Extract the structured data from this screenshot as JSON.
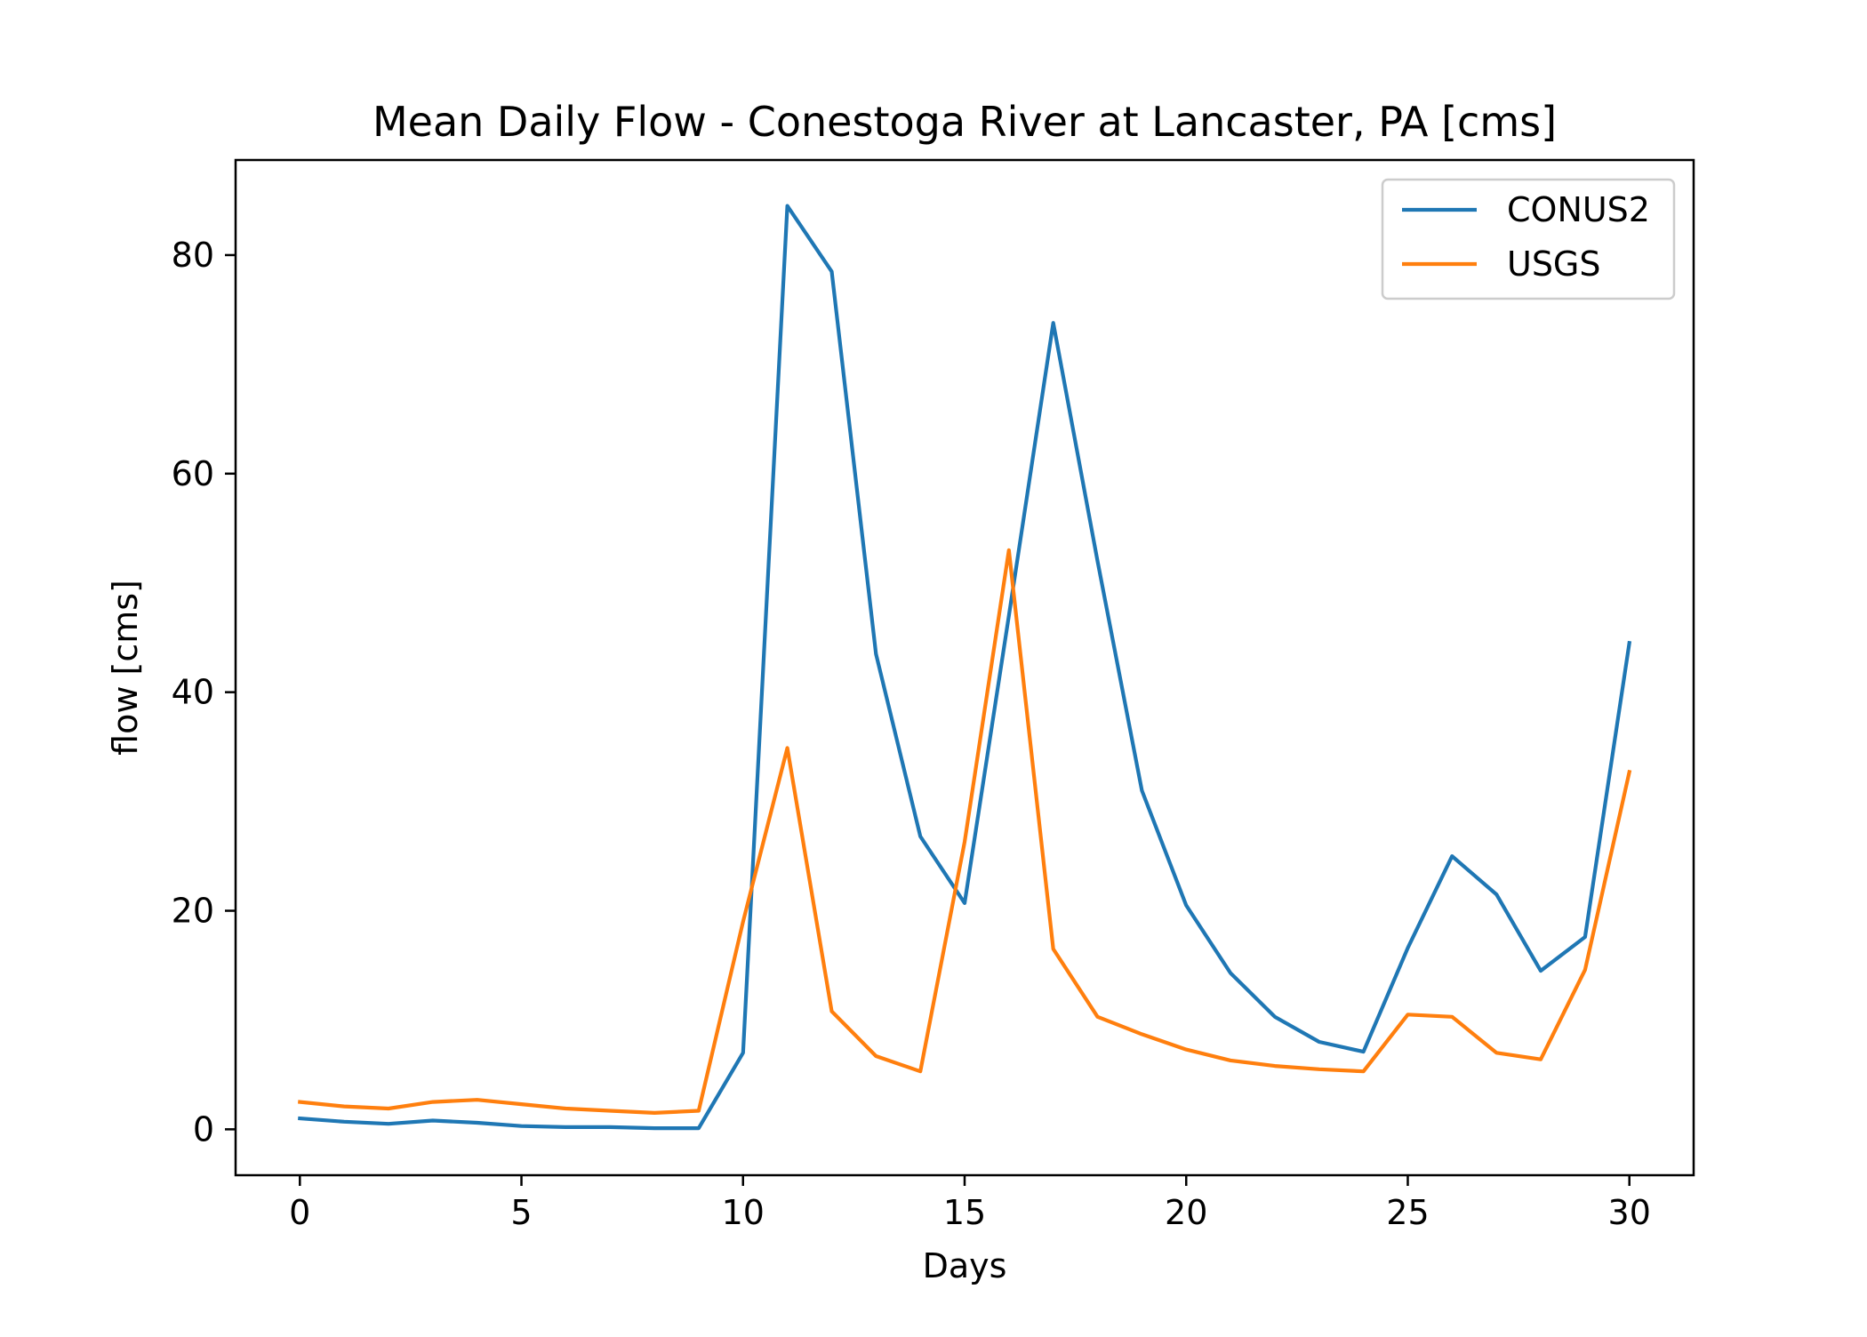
{
  "chart_data": {
    "type": "line",
    "title": "Mean Daily Flow - Conestoga River at Lancaster, PA [cms]",
    "xlabel": "Days",
    "ylabel": "flow [cms]",
    "xlim": [
      -1.45,
      31.45
    ],
    "ylim": [
      -4.2,
      88.7
    ],
    "xticks": [
      0,
      5,
      10,
      15,
      20,
      25,
      30
    ],
    "xtick_labels": [
      "0",
      "5",
      "10",
      "15",
      "20",
      "25",
      "30"
    ],
    "yticks": [
      0,
      20,
      40,
      60,
      80
    ],
    "ytick_labels": [
      "0",
      "20",
      "40",
      "60",
      "80"
    ],
    "grid": false,
    "legend_position": "top-right",
    "x": [
      0,
      1,
      2,
      3,
      4,
      5,
      6,
      7,
      8,
      9,
      10,
      11,
      12,
      13,
      14,
      15,
      16,
      17,
      18,
      19,
      20,
      21,
      22,
      23,
      24,
      25,
      26,
      27,
      28,
      29,
      30
    ],
    "series": [
      {
        "name": "CONUS2",
        "color": "#1f77b4",
        "values": [
          1.0,
          0.7,
          0.5,
          0.8,
          0.6,
          0.3,
          0.2,
          0.2,
          0.1,
          0.1,
          7.0,
          84.5,
          78.5,
          43.5,
          26.8,
          20.7,
          47.0,
          73.8,
          52.0,
          31.0,
          20.5,
          14.3,
          10.3,
          8.0,
          7.1,
          16.6,
          25.0,
          21.5,
          14.5,
          17.6,
          44.5
        ]
      },
      {
        "name": "USGS",
        "color": "#ff7f0e",
        "values": [
          2.5,
          2.1,
          1.9,
          2.5,
          2.7,
          2.3,
          1.9,
          1.7,
          1.5,
          1.7,
          19.0,
          34.9,
          10.8,
          6.7,
          5.3,
          26.3,
          53.0,
          16.5,
          10.3,
          8.7,
          7.3,
          6.3,
          5.8,
          5.5,
          5.3,
          10.5,
          10.3,
          7.0,
          6.4,
          14.6,
          32.7
        ]
      }
    ]
  }
}
